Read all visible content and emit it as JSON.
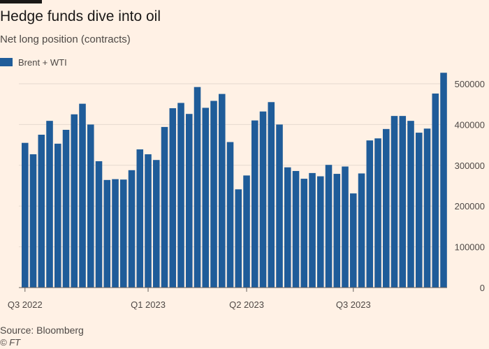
{
  "header": {
    "title": "Hedge funds dive into oil",
    "subtitle": "Net long position (contracts)"
  },
  "footer": {
    "source": "Source: Bloomberg",
    "credit": "© FT"
  },
  "colors": {
    "background": "#fff1e5",
    "bar": "#1f5c99",
    "gridline": "#e6d9ce",
    "baseline": "#66605c",
    "text": "#4d4845"
  },
  "chart_data": {
    "type": "bar",
    "title": "Hedge funds dive into oil",
    "subtitle": "Net long position (contracts)",
    "xlabel": "",
    "ylabel": "",
    "ylim": [
      0,
      530000
    ],
    "y_ticks": [
      0,
      100000,
      200000,
      300000,
      400000,
      500000
    ],
    "y_tick_labels": [
      "0",
      "100000",
      "200000",
      "300000",
      "400000",
      "500000"
    ],
    "y_axis_side": "right",
    "grid": true,
    "legend": "top-left",
    "x_tick_labels": [
      {
        "label": "Q3 2022",
        "bar_index": 0
      },
      {
        "label": "Q1 2023",
        "bar_index": 15
      },
      {
        "label": "Q2 2023",
        "bar_index": 27
      },
      {
        "label": "Q3 2023",
        "bar_index": 40
      }
    ],
    "series": [
      {
        "name": "Brent + WTI",
        "color": "#1f5c99",
        "values": [
          355000,
          327000,
          375000,
          409000,
          353000,
          387000,
          425000,
          451000,
          400000,
          310000,
          264000,
          266000,
          265000,
          288000,
          339000,
          327000,
          313000,
          394000,
          440000,
          453000,
          426000,
          492000,
          441000,
          458000,
          475000,
          357000,
          241000,
          275000,
          410000,
          432000,
          455000,
          400000,
          295000,
          286000,
          267000,
          281000,
          273000,
          301000,
          279000,
          297000,
          231000,
          280000,
          361000,
          366000,
          389000,
          421000,
          421000,
          409000,
          380000,
          390000,
          476000,
          527000
        ]
      }
    ]
  }
}
